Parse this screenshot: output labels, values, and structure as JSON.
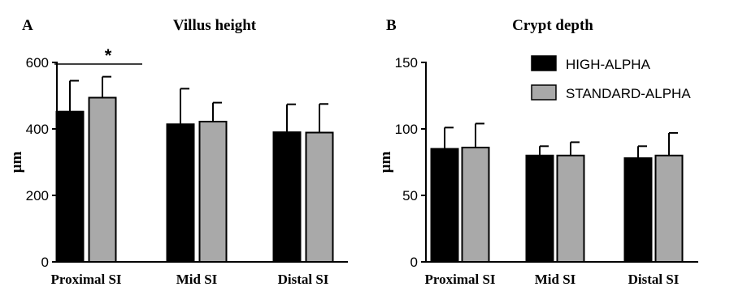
{
  "chart_data": [
    {
      "type": "bar",
      "panel": "A",
      "title": "Villus height",
      "ylabel": "µm",
      "xlabel": "",
      "ylim": [
        0,
        600
      ],
      "yticks": [
        0,
        200,
        400,
        600
      ],
      "categories": [
        "Proximal SI",
        "Mid SI",
        "Distal SI"
      ],
      "series": [
        {
          "name": "HIGH-ALPHA",
          "color": "#000000",
          "values": [
            452,
            414,
            390
          ],
          "errors": [
            93,
            107,
            84
          ]
        },
        {
          "name": "STANDARD-ALPHA",
          "color": "#a9a9a9",
          "values": [
            494,
            422,
            389
          ],
          "errors": [
            63,
            57,
            86
          ]
        }
      ],
      "annotations": [
        {
          "text": "*",
          "category": "Proximal SI"
        }
      ],
      "legend": "none",
      "grid": false
    },
    {
      "type": "bar",
      "panel": "B",
      "title": "Crypt depth",
      "ylabel": "µm",
      "xlabel": "",
      "ylim": [
        0,
        150
      ],
      "yticks": [
        0,
        50,
        100,
        150
      ],
      "categories": [
        "Proximal SI",
        "Mid SI",
        "Distal SI"
      ],
      "series": [
        {
          "name": "HIGH-ALPHA",
          "color": "#000000",
          "values": [
            85,
            80,
            78
          ],
          "errors": [
            16,
            7,
            9
          ]
        },
        {
          "name": "STANDARD-ALPHA",
          "color": "#a9a9a9",
          "values": [
            86,
            80,
            80
          ],
          "errors": [
            18,
            10,
            17
          ]
        }
      ],
      "annotations": [],
      "legend": "top-right",
      "grid": false
    }
  ]
}
